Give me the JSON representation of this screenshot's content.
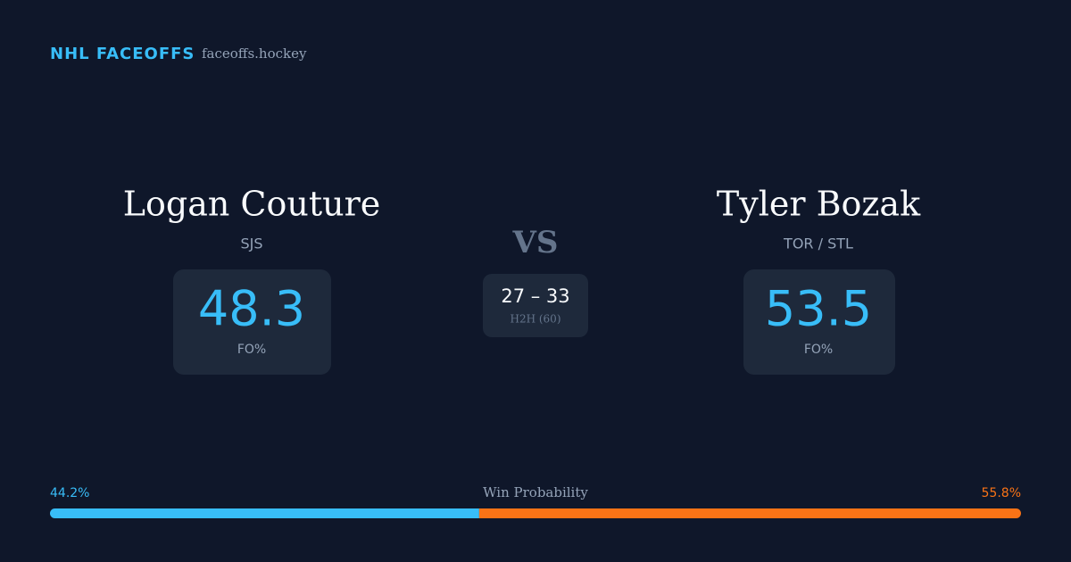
{
  "header": {
    "title": "NHL FACEOFFS",
    "site": "faceoffs.hockey"
  },
  "left_player": {
    "name": "Logan Couture",
    "team": "SJS",
    "stat": "48.3",
    "stat_label": "FO%"
  },
  "versus": "VS",
  "head_to_head": {
    "score": "27 – 33",
    "label": "H2H (60)"
  },
  "right_player": {
    "name": "Tyler Bozak",
    "team": "TOR / STL",
    "stat": "53.5",
    "stat_label": "FO%"
  },
  "win_probability": {
    "label": "Win Probability",
    "left": {
      "value": 44.2,
      "label": "44.2%",
      "color": "#38bdf8"
    },
    "right": {
      "value": 55.8,
      "label": "55.8%",
      "color": "#f97316"
    }
  }
}
